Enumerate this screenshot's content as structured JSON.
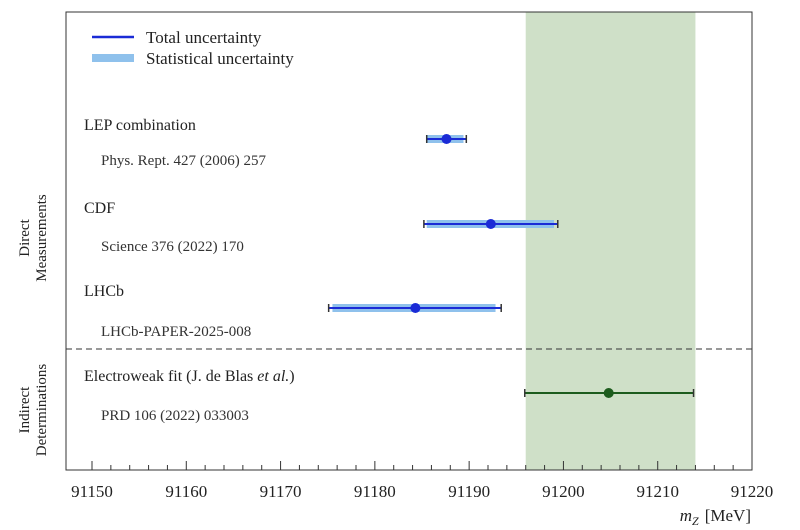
{
  "chart_data": {
    "type": "error-bar",
    "xlabel_symbol": "m",
    "xlabel_sub": "Z",
    "xlabel_unit": "[MeV]",
    "xlim": [
      91150,
      91220
    ],
    "xticks": [
      "91150",
      "91160",
      "91170",
      "91180",
      "91190",
      "91200",
      "91210",
      "91220"
    ],
    "legend": {
      "placement": "top-left",
      "total": "Total uncertainty",
      "stat": "Statistical uncertainty"
    },
    "band": {
      "range": [
        91196,
        91214
      ],
      "color": "#cfe0c8"
    },
    "groups": {
      "direct": [
        "Direct",
        "Measurements"
      ],
      "indirect": [
        "Indirect",
        "Determinations"
      ]
    },
    "measurements": [
      {
        "name": "LEP combination",
        "ref": "Phys. Rept. 427 (2006) 257",
        "value": 91187.6,
        "total": [
          91185.5,
          91189.7
        ],
        "stat": [
          91185.5,
          91189.4
        ],
        "color": "#1a2bd6"
      },
      {
        "name": "CDF",
        "ref": "Science 376 (2022) 170",
        "value": 91192.3,
        "total": [
          91185.2,
          91199.4
        ],
        "stat": [
          91185.5,
          91199.0
        ],
        "color": "#1a2bd6"
      },
      {
        "name": "LHCb",
        "ref": "LHCb-PAPER-2025-008",
        "value": 91184.3,
        "total": [
          91175.1,
          91193.4
        ],
        "stat": [
          91175.5,
          91192.8
        ],
        "color": "#1a2bd6"
      }
    ],
    "fit": {
      "name_prefix": "Electroweak fit (J. de Blas ",
      "name_italic": "et al.",
      "name_suffix": ")",
      "ref": "PRD 106 (2022) 033003",
      "value": 91204.8,
      "total": [
        91195.9,
        91213.8
      ],
      "color": "#1d5c1d"
    },
    "colors": {
      "stat": "#8fc1ec",
      "frame": "#333333"
    }
  }
}
